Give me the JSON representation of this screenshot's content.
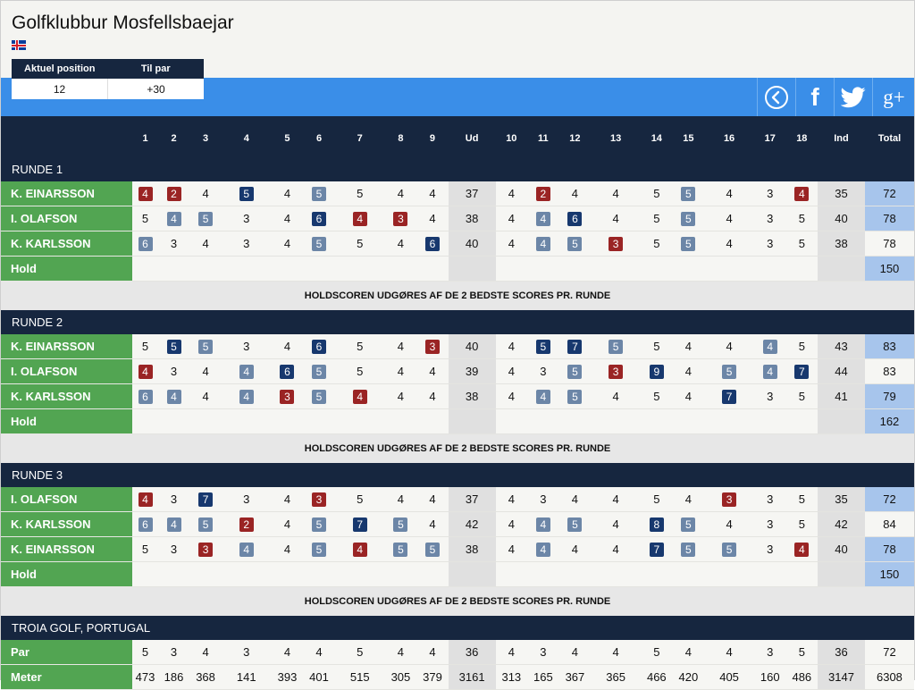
{
  "club": {
    "name": "Golfklubbur Mosfellsbaejar",
    "flag": "iceland-flag"
  },
  "position": {
    "headers": [
      "Aktuel position",
      "Til par"
    ],
    "values": [
      "12",
      "+30"
    ]
  },
  "social": [
    {
      "name": "back-button",
      "icon": "chevron-left-circle-icon"
    },
    {
      "name": "facebook-button",
      "icon": "facebook-icon",
      "glyph": "f"
    },
    {
      "name": "twitter-button",
      "icon": "twitter-icon"
    },
    {
      "name": "googleplus-button",
      "icon": "googleplus-icon",
      "glyph": "g+"
    }
  ],
  "colors": {
    "navy": "#16263f",
    "blue_bar": "#3a8ee8",
    "player_green": "#52a552",
    "total_blue": "#a7c5ec",
    "badge_red": "#9a2424",
    "badge_navy": "#17386e",
    "badge_grey": "#6c86a7"
  },
  "legend_note": "cell style r = red badge, n = dark blue badge, g = grey badge, p = plain",
  "headers": [
    "1",
    "2",
    "3",
    "4",
    "5",
    "6",
    "7",
    "8",
    "9",
    "Ud",
    "10",
    "11",
    "12",
    "13",
    "14",
    "15",
    "16",
    "17",
    "18",
    "Ind",
    "Total"
  ],
  "rounds": [
    {
      "title": "RUNDE 1",
      "players": [
        {
          "name": "K. EINARSSON",
          "scores": [
            "4",
            "2",
            "4",
            "5",
            "4",
            "5",
            "5",
            "4",
            "4"
          ],
          "styles": [
            "r",
            "r",
            "p",
            "n",
            "p",
            "g",
            "p",
            "p",
            "p"
          ],
          "out": "37",
          "scores_in": [
            "4",
            "2",
            "4",
            "4",
            "5",
            "5",
            "4",
            "3",
            "4"
          ],
          "styles_in": [
            "p",
            "r",
            "p",
            "p",
            "p",
            "g",
            "p",
            "p",
            "r"
          ],
          "in": "35",
          "total": "72",
          "total_hl": true
        },
        {
          "name": "I. OLAFSON",
          "scores": [
            "5",
            "4",
            "5",
            "3",
            "4",
            "6",
            "4",
            "3",
            "4"
          ],
          "styles": [
            "p",
            "g",
            "g",
            "p",
            "p",
            "n",
            "r",
            "r",
            "p"
          ],
          "out": "38",
          "scores_in": [
            "4",
            "4",
            "6",
            "4",
            "5",
            "5",
            "4",
            "3",
            "5"
          ],
          "styles_in": [
            "p",
            "g",
            "n",
            "p",
            "p",
            "g",
            "p",
            "p",
            "p"
          ],
          "in": "40",
          "total": "78",
          "total_hl": true
        },
        {
          "name": "K. KARLSSON",
          "scores": [
            "6",
            "3",
            "4",
            "3",
            "4",
            "5",
            "5",
            "4",
            "6"
          ],
          "styles": [
            "g",
            "p",
            "p",
            "p",
            "p",
            "g",
            "p",
            "p",
            "n"
          ],
          "out": "40",
          "scores_in": [
            "4",
            "4",
            "5",
            "3",
            "5",
            "5",
            "4",
            "3",
            "5"
          ],
          "styles_in": [
            "p",
            "g",
            "g",
            "r",
            "p",
            "g",
            "p",
            "p",
            "p"
          ],
          "in": "38",
          "total": "78",
          "total_hl": false
        }
      ],
      "hold_label": "Hold",
      "hold_total": "150",
      "note": "HOLDSCOREN UDGØRES AF DE 2 BEDSTE SCORES PR. RUNDE"
    },
    {
      "title": "RUNDE 2",
      "players": [
        {
          "name": "K. EINARSSON",
          "scores": [
            "5",
            "5",
            "5",
            "3",
            "4",
            "6",
            "5",
            "4",
            "3"
          ],
          "styles": [
            "p",
            "n",
            "g",
            "p",
            "p",
            "n",
            "p",
            "p",
            "r"
          ],
          "out": "40",
          "scores_in": [
            "4",
            "5",
            "7",
            "5",
            "5",
            "4",
            "4",
            "4",
            "5"
          ],
          "styles_in": [
            "p",
            "n",
            "n",
            "g",
            "p",
            "p",
            "p",
            "g",
            "p"
          ],
          "in": "43",
          "total": "83",
          "total_hl": true
        },
        {
          "name": "I. OLAFSON",
          "scores": [
            "4",
            "3",
            "4",
            "4",
            "6",
            "5",
            "5",
            "4",
            "4"
          ],
          "styles": [
            "r",
            "p",
            "p",
            "g",
            "n",
            "g",
            "p",
            "p",
            "p"
          ],
          "out": "39",
          "scores_in": [
            "4",
            "3",
            "5",
            "3",
            "9",
            "4",
            "5",
            "4",
            "7"
          ],
          "styles_in": [
            "p",
            "p",
            "g",
            "r",
            "n",
            "p",
            "g",
            "g",
            "n"
          ],
          "in": "44",
          "total": "83",
          "total_hl": false
        },
        {
          "name": "K. KARLSSON",
          "scores": [
            "6",
            "4",
            "4",
            "4",
            "3",
            "5",
            "4",
            "4",
            "4"
          ],
          "styles": [
            "g",
            "g",
            "p",
            "g",
            "r",
            "g",
            "r",
            "p",
            "p"
          ],
          "out": "38",
          "scores_in": [
            "4",
            "4",
            "5",
            "4",
            "5",
            "4",
            "7",
            "3",
            "5"
          ],
          "styles_in": [
            "p",
            "g",
            "g",
            "p",
            "p",
            "p",
            "n",
            "p",
            "p"
          ],
          "in": "41",
          "total": "79",
          "total_hl": true
        }
      ],
      "hold_label": "Hold",
      "hold_total": "162",
      "note": "HOLDSCOREN UDGØRES AF DE 2 BEDSTE SCORES PR. RUNDE"
    },
    {
      "title": "RUNDE 3",
      "players": [
        {
          "name": "I. OLAFSON",
          "scores": [
            "4",
            "3",
            "7",
            "3",
            "4",
            "3",
            "5",
            "4",
            "4"
          ],
          "styles": [
            "r",
            "p",
            "n",
            "p",
            "p",
            "r",
            "p",
            "p",
            "p"
          ],
          "out": "37",
          "scores_in": [
            "4",
            "3",
            "4",
            "4",
            "5",
            "4",
            "3",
            "3",
            "5"
          ],
          "styles_in": [
            "p",
            "p",
            "p",
            "p",
            "p",
            "p",
            "r",
            "p",
            "p"
          ],
          "in": "35",
          "total": "72",
          "total_hl": true
        },
        {
          "name": "K. KARLSSON",
          "scores": [
            "6",
            "4",
            "5",
            "2",
            "4",
            "5",
            "7",
            "5",
            "4"
          ],
          "styles": [
            "g",
            "g",
            "g",
            "r",
            "p",
            "g",
            "n",
            "g",
            "p"
          ],
          "out": "42",
          "scores_in": [
            "4",
            "4",
            "5",
            "4",
            "8",
            "5",
            "4",
            "3",
            "5"
          ],
          "styles_in": [
            "p",
            "g",
            "g",
            "p",
            "n",
            "g",
            "p",
            "p",
            "p"
          ],
          "in": "42",
          "total": "84",
          "total_hl": false
        },
        {
          "name": "K. EINARSSON",
          "scores": [
            "5",
            "3",
            "3",
            "4",
            "4",
            "5",
            "4",
            "5",
            "5"
          ],
          "styles": [
            "p",
            "p",
            "r",
            "g",
            "p",
            "g",
            "r",
            "g",
            "g"
          ],
          "out": "38",
          "scores_in": [
            "4",
            "4",
            "4",
            "4",
            "7",
            "5",
            "5",
            "3",
            "4"
          ],
          "styles_in": [
            "p",
            "g",
            "p",
            "p",
            "n",
            "g",
            "g",
            "p",
            "r"
          ],
          "in": "40",
          "total": "78",
          "total_hl": true
        }
      ],
      "hold_label": "Hold",
      "hold_total": "150",
      "note": "HOLDSCOREN UDGØRES AF DE 2 BEDSTE SCORES PR. RUNDE"
    }
  ],
  "course": {
    "title": "TROIA GOLF, PORTUGAL",
    "rows": [
      {
        "label": "Par",
        "front": [
          "5",
          "3",
          "4",
          "3",
          "4",
          "4",
          "5",
          "4",
          "4"
        ],
        "out": "36",
        "back": [
          "4",
          "3",
          "4",
          "4",
          "5",
          "4",
          "4",
          "3",
          "5"
        ],
        "in": "36",
        "total": "72"
      },
      {
        "label": "Meter",
        "front": [
          "473",
          "186",
          "368",
          "141",
          "393",
          "401",
          "515",
          "305",
          "379"
        ],
        "out": "3161",
        "back": [
          "313",
          "165",
          "367",
          "365",
          "466",
          "420",
          "405",
          "160",
          "486"
        ],
        "in": "3147",
        "total": "6308"
      }
    ]
  }
}
